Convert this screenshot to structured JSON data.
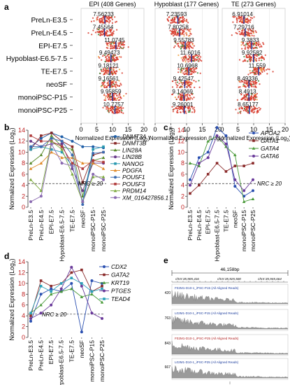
{
  "panel_a": {
    "letter": "a",
    "rows": [
      "PreLn-E3.5",
      "PreLn-E4.5",
      "EPI-E7.5",
      "Hypoblast-E6.5-7.5",
      "TE-E7.5",
      "neoSF",
      "monoiPSC-P15",
      "monoiPSC-P25"
    ],
    "subplots": [
      {
        "title": "EPI (408 Genes)",
        "medians": [
          "7.56233",
          "7.45564",
          "11.0745",
          "9.49473",
          "9.18121",
          "9.16561",
          "9.95859",
          "10.7757"
        ]
      },
      {
        "title": "Hypoblast (177 Genes)",
        "medians": [
          "7.23593",
          "7.80258",
          "9.55783",
          "11.6016",
          "10.6968",
          "9.42547",
          "9.14069",
          "9.26001"
        ]
      },
      {
        "title": "TE (273 Genes)",
        "medians": [
          "6.91014",
          "7.29716",
          "9.3833",
          "9.92582",
          "11.559",
          "8.49336",
          "8.4913",
          "8.65177"
        ]
      }
    ],
    "ticks": [
      "0",
      "5",
      "10",
      "15",
      "20"
    ],
    "xlabel": "Normalized Expression (Log",
    "xlabel_sub": "2",
    "xlabel_end": ")"
  },
  "panel_b": {
    "letter": "b",
    "ylabel": "Normalized Expression (Log",
    "ylabel_sub": "2",
    "ylabel_end": ")",
    "yticks": [
      "0",
      "2",
      "4",
      "6",
      "8",
      "10",
      "12",
      "14"
    ],
    "nrc": "NRC ≥ 20",
    "categories": [
      "PreLn-E3.5",
      "PreLn-E4.5",
      "EPI-E7.5",
      "Hypoblast-E6.5-7.5",
      "TE-E7.5",
      "neoSF",
      "monoiPSC-P15",
      "monoiPSC-P25"
    ],
    "legend": [
      "DNMT3A",
      "DNMT3B",
      "LIN28A",
      "LIN28B",
      "NANOG",
      "PDGFA",
      "POU5F1",
      "POU5F3",
      "PRDM14",
      "XM_016427856.1"
    ]
  },
  "panel_c": {
    "letter": "c",
    "ylabel": "Normalized Expression (Log",
    "ylabel_sub": "2",
    "ylabel_end": ")",
    "yticks": [
      "0",
      "2",
      "4",
      "6",
      "8",
      "10",
      "12",
      "14"
    ],
    "nrc": "NRC ≥ 20",
    "categories": [
      "PreLn-E3.5",
      "PreLn-E4.5",
      "EPI-E7.5",
      "Hypoblast-E6.5-7.5",
      "TE-E7.5",
      "neoSF",
      "monoiPSC-P15",
      "monoiPSC-P25"
    ],
    "legend": [
      "APOA2",
      "GATA1",
      "GATA4",
      "GATA6"
    ]
  },
  "panel_d": {
    "letter": "d",
    "ylabel": "Normalized Expression (Log",
    "ylabel_sub": "2",
    "ylabel_end": ")",
    "yticks": [
      "0",
      "2",
      "4",
      "6",
      "8",
      "10",
      "12",
      "14"
    ],
    "nrc": "NRC ≥ 20",
    "categories": [
      "PreLn-E3.5",
      "PreLn-E4.5",
      "EPI-E7.5",
      "Hypoblast-E6.5-7.5",
      "TE-E7.5",
      "neoSF",
      "monoiPSC-P15",
      "monoiPSC-P25"
    ],
    "legend": [
      "CDX2",
      "GATA2",
      "KRT19",
      "PTGES",
      "TEAD4"
    ]
  },
  "panel_e": {
    "letter": "e",
    "scale": "46,158bp",
    "coords": [
      "chrX:35,905,416",
      "chrX:35,925,500",
      "chrX:35,945,664"
    ],
    "tracks": [
      {
        "label": "F02M1-D10-1_iPSC-P15 (All Aligned Reads)",
        "ymax": "420",
        "color": "#1f3f9e"
      },
      {
        "label": "L02M1-D10-1_iPSC-P15 (All Aligned Reads)",
        "ymax": "763",
        "color": "#1f3f9e"
      },
      {
        "label": "F02M1-D10-1_iPSC-P25 (All Aligned Reads)",
        "ymax": "843",
        "color": "#b02020"
      },
      {
        "label": "L02M1-D10-1_iPSC-P25 (All Aligned Reads)",
        "ymax": "667",
        "color": "#1f3f9e"
      }
    ]
  },
  "chart_data": [
    {
      "type": "scatter",
      "panel": "a",
      "title": "EPI (408 Genes)",
      "xlabel": "Normalized Expression (Log2)",
      "xlim": [
        0,
        20
      ],
      "categories": [
        "PreLn-E3.5",
        "PreLn-E4.5",
        "EPI-E7.5",
        "Hypoblast-E6.5-7.5",
        "TE-E7.5",
        "neoSF",
        "monoiPSC-P15",
        "monoiPSC-P25"
      ],
      "medians": [
        7.56233,
        7.45564,
        11.0745,
        9.49473,
        9.18121,
        9.16561,
        9.95859,
        10.7757
      ]
    },
    {
      "type": "scatter",
      "panel": "a",
      "title": "Hypoblast (177 Genes)",
      "xlabel": "Normalized Expression (Log2)",
      "xlim": [
        0,
        20
      ],
      "categories": [
        "PreLn-E3.5",
        "PreLn-E4.5",
        "EPI-E7.5",
        "Hypoblast-E6.5-7.5",
        "TE-E7.5",
        "neoSF",
        "monoiPSC-P15",
        "monoiPSC-P25"
      ],
      "medians": [
        7.23593,
        7.80258,
        9.55783,
        11.6016,
        10.6968,
        9.42547,
        9.14069,
        9.26001
      ]
    },
    {
      "type": "scatter",
      "panel": "a",
      "title": "TE (273 Genes)",
      "xlabel": "Normalized Expression (Log2)",
      "xlim": [
        0,
        20
      ],
      "categories": [
        "PreLn-E3.5",
        "PreLn-E4.5",
        "EPI-E7.5",
        "Hypoblast-E6.5-7.5",
        "TE-E7.5",
        "neoSF",
        "monoiPSC-P15",
        "monoiPSC-P25"
      ],
      "medians": [
        6.91014,
        7.29716,
        9.3833,
        9.92582,
        11.559,
        8.49336,
        8.4913,
        8.65177
      ]
    },
    {
      "type": "line",
      "panel": "b",
      "ylabel": "Normalized Expression (Log2)",
      "ylim": [
        0,
        14
      ],
      "nrc_threshold": 4.3,
      "categories": [
        "PreLn-E3.5",
        "PreLn-E4.5",
        "EPI-E7.5",
        "Hypoblast-E6.5-7.5",
        "TE-E7.5",
        "neoSF",
        "monoiPSC-P15",
        "monoiPSC-P25"
      ],
      "series": [
        {
          "name": "DNMT3A",
          "color": "#1f5fa8",
          "values": [
            11.0,
            12.5,
            13.5,
            12.8,
            12.0,
            11.0,
            11.0,
            10.8
          ]
        },
        {
          "name": "DNMT3B",
          "color": "#8a2a2a",
          "values": [
            10.5,
            13.0,
            13.5,
            12.0,
            11.0,
            4.5,
            9.5,
            10.0
          ]
        },
        {
          "name": "LIN28A",
          "color": "#5a8a2a",
          "values": [
            8.0,
            9.5,
            13.0,
            11.0,
            10.5,
            2.0,
            8.5,
            9.0
          ]
        },
        {
          "name": "LIN28B",
          "color": "#6a3a8a",
          "values": [
            12.0,
            11.0,
            11.5,
            11.5,
            7.0,
            3.0,
            8.0,
            8.0
          ]
        },
        {
          "name": "NANOG",
          "color": "#2a9ab0",
          "values": [
            10.5,
            11.0,
            10.5,
            10.0,
            7.5,
            1.0,
            10.5,
            11.0
          ]
        },
        {
          "name": "PDGFA",
          "color": "#e08a2a",
          "values": [
            7.0,
            8.0,
            10.0,
            9.0,
            9.0,
            8.0,
            8.0,
            7.0
          ]
        },
        {
          "name": "POU5F1",
          "color": "#3a6ab0",
          "values": [
            11.0,
            11.0,
            12.5,
            12.0,
            9.5,
            0.5,
            9.8,
            10.0
          ]
        },
        {
          "name": "POU5F3",
          "color": "#b03a3a",
          "values": [
            13.0,
            12.0,
            12.0,
            11.0,
            8.0,
            7.0,
            8.5,
            8.2
          ]
        },
        {
          "name": "PRDM14",
          "color": "#7aa83a",
          "values": [
            5.0,
            3.0,
            12.0,
            10.5,
            6.0,
            1.0,
            5.5,
            5.5
          ]
        },
        {
          "name": "XM_016427856.1",
          "color": "#8a6ab0",
          "values": [
            1.0,
            2.0,
            11.5,
            8.0,
            7.5,
            1.0,
            6.0,
            5.0
          ]
        }
      ]
    },
    {
      "type": "line",
      "panel": "c",
      "ylabel": "Normalized Expression (Log2)",
      "ylim": [
        0,
        14
      ],
      "nrc_threshold": 4.3,
      "categories": [
        "PreLn-E3.5",
        "PreLn-E4.5",
        "EPI-E7.5",
        "Hypoblast-E6.5-7.5",
        "TE-E7.5",
        "neoSF",
        "monoiPSC-P15",
        "monoiPSC-P25"
      ],
      "series": [
        {
          "name": "APOA2",
          "color": "#2a4fb0",
          "values": [
            5.0,
            9.0,
            10.0,
            14.5,
            13.0,
            3.8,
            2.0,
            3.0
          ]
        },
        {
          "name": "GATA1",
          "color": "#8a2a2a",
          "values": [
            2.5,
            4.0,
            6.0,
            8.0,
            6.5,
            7.5,
            7.5,
            8.0
          ]
        },
        {
          "name": "GATA4",
          "color": "#4a9a3a",
          "values": [
            8.0,
            7.5,
            12.0,
            13.0,
            11.0,
            9.5,
            1.0,
            1.5
          ]
        },
        {
          "name": "GATA6",
          "color": "#6a3a9a",
          "values": [
            4.0,
            8.0,
            9.0,
            13.0,
            11.5,
            5.0,
            3.0,
            5.0
          ]
        }
      ]
    },
    {
      "type": "line",
      "panel": "d",
      "ylabel": "Normalized Expression (Log2)",
      "ylim": [
        0,
        14
      ],
      "nrc_threshold": 4.3,
      "categories": [
        "PreLn-E3.5",
        "PreLn-E4.5",
        "EPI-E7.5",
        "Hypoblast-E6.5-7.5",
        "TE-E7.5",
        "neoSF",
        "monoiPSC-P15",
        "monoiPSC-P25"
      ],
      "series": [
        {
          "name": "CDX2",
          "color": "#2a4fb0",
          "values": [
            3.0,
            8.0,
            9.0,
            8.5,
            10.0,
            1.0,
            10.5,
            10.0
          ]
        },
        {
          "name": "GATA2",
          "color": "#8a2a2a",
          "values": [
            4.0,
            10.5,
            9.5,
            10.0,
            12.0,
            12.5,
            8.5,
            9.5
          ]
        },
        {
          "name": "KRT19",
          "color": "#4a9a3a",
          "values": [
            4.5,
            6.0,
            8.0,
            8.5,
            9.0,
            7.5,
            8.0,
            6.5
          ]
        },
        {
          "name": "PTGES",
          "color": "#6a3a9a",
          "values": [
            3.5,
            4.5,
            6.0,
            9.0,
            13.0,
            9.5,
            4.5,
            3.5
          ]
        },
        {
          "name": "TEAD4",
          "color": "#2aa0b8",
          "values": [
            4.5,
            9.5,
            8.5,
            10.0,
            11.0,
            10.0,
            8.5,
            9.0
          ]
        }
      ]
    }
  ]
}
